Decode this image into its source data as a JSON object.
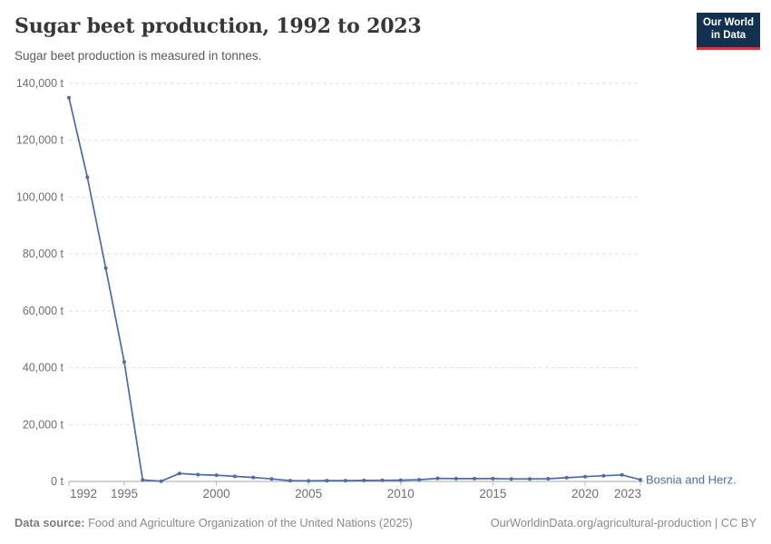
{
  "header": {
    "title": "Sugar beet production, 1992 to 2023",
    "subtitle": "Sugar beet production is measured in tonnes.",
    "logo": {
      "line1": "Our World",
      "line2": "in Data",
      "bg_color": "#12304f",
      "accent_color": "#cc3b40"
    }
  },
  "chart_data": {
    "type": "line",
    "title": "Sugar beet production, 1992 to 2023",
    "unit": "tonnes",
    "xlim": [
      1992,
      2023
    ],
    "ylim": [
      0,
      140000
    ],
    "grid": "horizontal-dashed",
    "legend_position": "end-of-line-label",
    "x_ticks": [
      1992,
      1995,
      2000,
      2005,
      2010,
      2015,
      2020,
      2023
    ],
    "x_tick_labels": [
      "1992",
      "1995",
      "2000",
      "2005",
      "2010",
      "2015",
      "2020",
      "2023"
    ],
    "y_ticks": [
      0,
      20000,
      40000,
      60000,
      80000,
      100000,
      120000,
      140000
    ],
    "y_tick_labels": [
      "0 t",
      "20,000 t",
      "40,000 t",
      "60,000 t",
      "80,000 t",
      "100,000 t",
      "120,000 t",
      "140,000 t"
    ],
    "x": [
      1992,
      1993,
      1994,
      1995,
      1996,
      1997,
      1998,
      1999,
      2000,
      2001,
      2002,
      2003,
      2004,
      2005,
      2006,
      2007,
      2008,
      2009,
      2010,
      2011,
      2012,
      2013,
      2014,
      2015,
      2016,
      2017,
      2018,
      2019,
      2020,
      2021,
      2022,
      2023
    ],
    "series": [
      {
        "name": "Bosnia and Herz.",
        "color": "#4c6ba9",
        "values": [
          135000,
          107000,
          75000,
          42000,
          500,
          100,
          2800,
          2400,
          2200,
          1800,
          1400,
          900,
          300,
          200,
          300,
          300,
          350,
          400,
          450,
          600,
          1100,
          1000,
          1000,
          1000,
          900,
          900,
          950,
          1300,
          1700,
          2000,
          2300,
          600
        ]
      }
    ],
    "style": {
      "gridline_color": "#e2e2e2",
      "axis_line_color": "#a5a5a5",
      "tick_color": "#b5b5b5",
      "tick_label_color": "#6f6f6f"
    }
  },
  "footer": {
    "source_label": "Data source:",
    "source_text": "Food and Agriculture Organization of the United Nations (2025)",
    "link_text": "OurWorldinData.org/agricultural-production | CC BY"
  }
}
